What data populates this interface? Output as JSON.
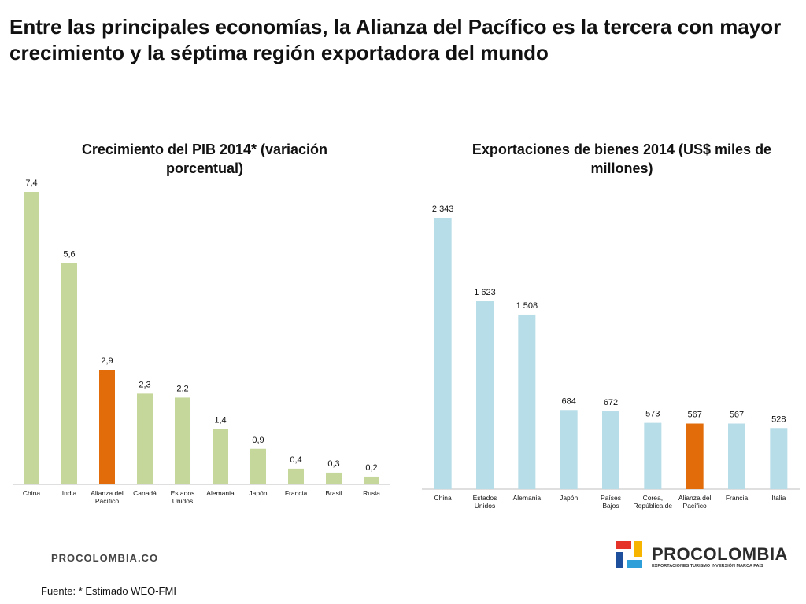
{
  "header": {
    "title": "Entre las principales economías, la Alianza del Pacífico es la tercera con mayor crecimiento y la séptima región exportadora del mundo"
  },
  "chart_data": [
    {
      "type": "bar",
      "title": "Crecimiento del PIB 2014* (variación porcentual)",
      "categories": [
        "China",
        "India",
        "Alianza del Pacífico",
        "Canadá",
        "Estados Unidos",
        "Alemania",
        "Japón",
        "Francia",
        "Brasil",
        "Rusia"
      ],
      "values": [
        7.4,
        5.6,
        2.9,
        2.3,
        2.2,
        1.4,
        0.9,
        0.4,
        0.3,
        0.2
      ],
      "value_labels": [
        "7,4",
        "5,6",
        "2,9",
        "2,3",
        "2,2",
        "1,4",
        "0,9",
        "0,4",
        "0,3",
        "0,2"
      ],
      "ylim": [
        0,
        7.4
      ],
      "grid": false,
      "colors": {
        "default": "#c5d79b",
        "highlight": "#e36c0a"
      },
      "highlight_index": 2
    },
    {
      "type": "bar",
      "title": "Exportaciones de bienes 2014 (US$ miles de millones)",
      "categories": [
        "China",
        "Estados Unidos",
        "Alemania",
        "Japón",
        "Países Bajos",
        "Corea, República de",
        "Alianza del Pacífico",
        "Francia",
        "Italia"
      ],
      "values": [
        2343,
        1623,
        1508,
        684,
        672,
        573,
        567,
        567,
        528
      ],
      "value_labels": [
        "2 343",
        "1 623",
        "1 508",
        "684",
        "672",
        "573",
        "567",
        "567",
        "528"
      ],
      "ylim": [
        0,
        2343
      ],
      "grid": false,
      "colors": {
        "default": "#b7dde8",
        "highlight": "#e36c0a"
      },
      "highlight_index": 6
    }
  ],
  "footer": {
    "website": "PROCOLOMBIA.CO",
    "source": "Fuente: * Estimado WEO-FMI",
    "logo_text": "PROCOLOMBIA",
    "logo_tagline": "EXPORTACIONES TURISMO INVERSIÓN MARCA PAÍS"
  }
}
